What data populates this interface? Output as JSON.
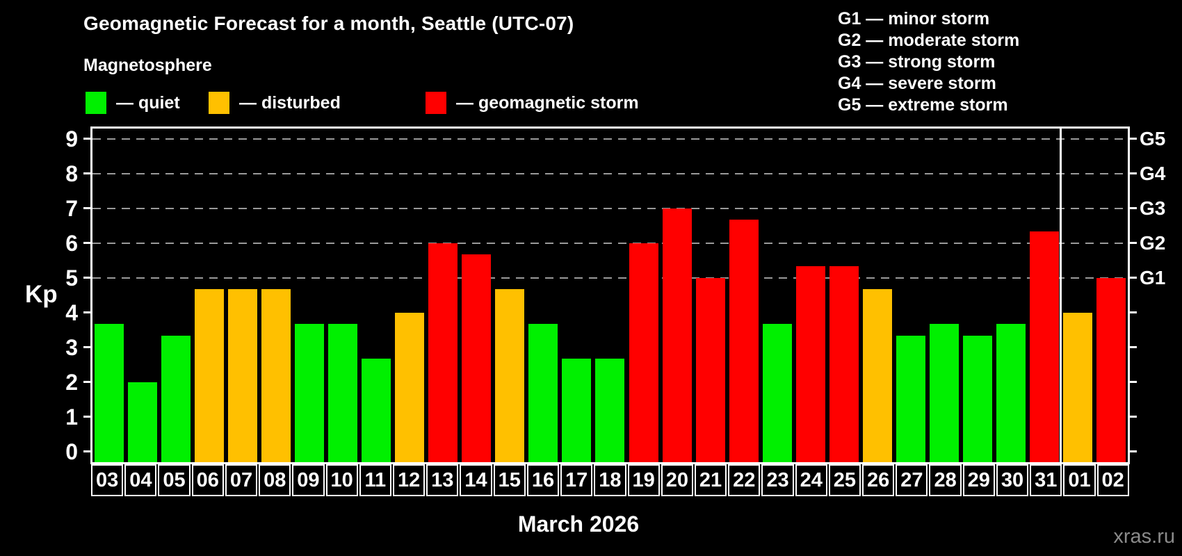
{
  "header": {
    "title": "Geomagnetic Forecast for a month, Seattle (UTC-07)",
    "subtitle": "Magnetosphere"
  },
  "legend": {
    "quiet": "— quiet",
    "disturbed": "— disturbed",
    "storm": "— geomagnetic storm"
  },
  "g_legend": [
    "G1 — minor storm",
    "G2 — moderate storm",
    "G3 — strong storm",
    "G4 — severe storm",
    "G5 — extreme storm"
  ],
  "colors": {
    "quiet": "#00f000",
    "disturbed": "#ffc000",
    "storm": "#ff0000",
    "grid": "#9a9a9a",
    "axis": "#ffffff",
    "watermark": "#8a8a8a"
  },
  "chart_data": {
    "type": "bar",
    "title": "Geomagnetic Forecast for a month, Seattle (UTC-07)",
    "ylabel": "Kp",
    "xlabel": "March 2026",
    "ylim": [
      0,
      9
    ],
    "y_ticks": [
      0,
      1,
      2,
      3,
      4,
      5,
      6,
      7,
      8,
      9
    ],
    "gridlines_at": [
      5,
      6,
      7,
      8,
      9
    ],
    "right_axis_labels": [
      {
        "kp": 5,
        "label": "G1"
      },
      {
        "kp": 6,
        "label": "G2"
      },
      {
        "kp": 7,
        "label": "G3"
      },
      {
        "kp": 8,
        "label": "G4"
      },
      {
        "kp": 9,
        "label": "G5"
      }
    ],
    "legend_position": "top-left",
    "categories": [
      "03",
      "04",
      "05",
      "06",
      "07",
      "08",
      "09",
      "10",
      "11",
      "12",
      "13",
      "14",
      "15",
      "16",
      "17",
      "18",
      "19",
      "20",
      "21",
      "22",
      "23",
      "24",
      "25",
      "26",
      "27",
      "28",
      "29",
      "30",
      "31",
      "01",
      "02"
    ],
    "values": [
      3.67,
      2.0,
      3.33,
      4.67,
      4.67,
      4.67,
      3.67,
      3.67,
      2.67,
      4.0,
      6.0,
      5.67,
      4.67,
      3.67,
      2.67,
      2.67,
      6.0,
      7.0,
      5.0,
      6.67,
      3.67,
      5.33,
      5.33,
      4.67,
      3.33,
      3.67,
      3.33,
      3.67,
      6.33,
      4.0,
      5.0
    ],
    "statuses": [
      "quiet",
      "quiet",
      "quiet",
      "disturbed",
      "disturbed",
      "disturbed",
      "quiet",
      "quiet",
      "quiet",
      "disturbed",
      "storm",
      "storm",
      "disturbed",
      "quiet",
      "quiet",
      "quiet",
      "storm",
      "storm",
      "storm",
      "storm",
      "quiet",
      "storm",
      "storm",
      "disturbed",
      "quiet",
      "quiet",
      "quiet",
      "quiet",
      "storm",
      "disturbed",
      "storm"
    ],
    "month_separator_after_index": 28
  },
  "footer": {
    "month_label": "March 2026",
    "watermark": "xras.ru"
  }
}
